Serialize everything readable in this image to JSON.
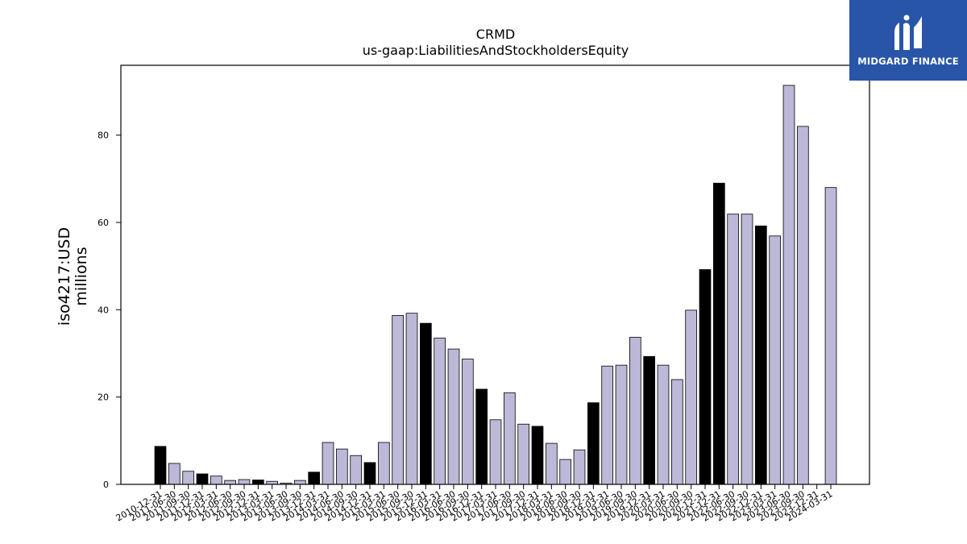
{
  "chart_data": {
    "type": "bar",
    "title": "CRMD",
    "subtitle": "us-gaap:LiabilitiesAndStockholdersEquity",
    "ylabel_line1": "iso4217:USD",
    "ylabel_line2": "millions",
    "ylim": [
      0,
      96
    ],
    "yticks": [
      0,
      20,
      40,
      60,
      80
    ],
    "categories": [
      "2010-12-31",
      "2011-06-30",
      "2011-09-30",
      "2011-12-31",
      "2012-03-31",
      "2012-06-30",
      "2012-09-30",
      "2012-12-31",
      "2013-03-31",
      "2013-06-30",
      "2013-09-30",
      "2013-12-31",
      "2014-03-31",
      "2014-06-30",
      "2014-09-30",
      "2014-12-31",
      "2015-03-31",
      "2015-06-30",
      "2015-09-30",
      "2015-12-31",
      "2016-03-31",
      "2016-06-30",
      "2016-09-30",
      "2016-12-31",
      "2017-03-31",
      "2017-06-30",
      "2017-09-30",
      "2017-12-31",
      "2018-03-31",
      "2018-06-30",
      "2018-09-30",
      "2018-12-31",
      "2019-03-31",
      "2019-06-30",
      "2019-09-30",
      "2019-12-31",
      "2020-03-31",
      "2020-06-30",
      "2020-09-30",
      "2020-12-31",
      "2021-12-31",
      "2022-06-30",
      "2022-09-30",
      "2022-12-31",
      "2023-03-31",
      "2023-06-30",
      "2023-09-30",
      "2023-12-31",
      "2024-03-31"
    ],
    "values": [
      8.7,
      4.8,
      3.0,
      2.4,
      1.9,
      0.9,
      1.1,
      1.0,
      0.7,
      0.3,
      0.9,
      2.8,
      9.6,
      8.1,
      6.6,
      5.0,
      9.6,
      38.7,
      39.2,
      36.9,
      33.5,
      31.0,
      28.7,
      21.8,
      14.8,
      21.0,
      13.8,
      13.3,
      9.4,
      5.7,
      7.9,
      18.7,
      27.1,
      27.3,
      33.7,
      29.3,
      27.3,
      24.0,
      39.9,
      49.2,
      69.0,
      61.9,
      61.9,
      59.2,
      56.9,
      91.4,
      82.0,
      0,
      68.0
    ],
    "annual": [
      true,
      false,
      false,
      true,
      false,
      false,
      false,
      true,
      false,
      false,
      false,
      true,
      false,
      false,
      false,
      true,
      false,
      false,
      false,
      true,
      false,
      false,
      false,
      true,
      false,
      false,
      false,
      true,
      false,
      false,
      false,
      true,
      false,
      false,
      false,
      true,
      false,
      false,
      false,
      true,
      true,
      false,
      false,
      true,
      false,
      false,
      false,
      true,
      false
    ],
    "colors": {
      "annual": "#000000",
      "quarterly": "#bcb9d8",
      "edge": "#000000"
    },
    "grid": false,
    "legend": "none"
  },
  "logo": {
    "text": "MIDGARD FINANCE"
  }
}
